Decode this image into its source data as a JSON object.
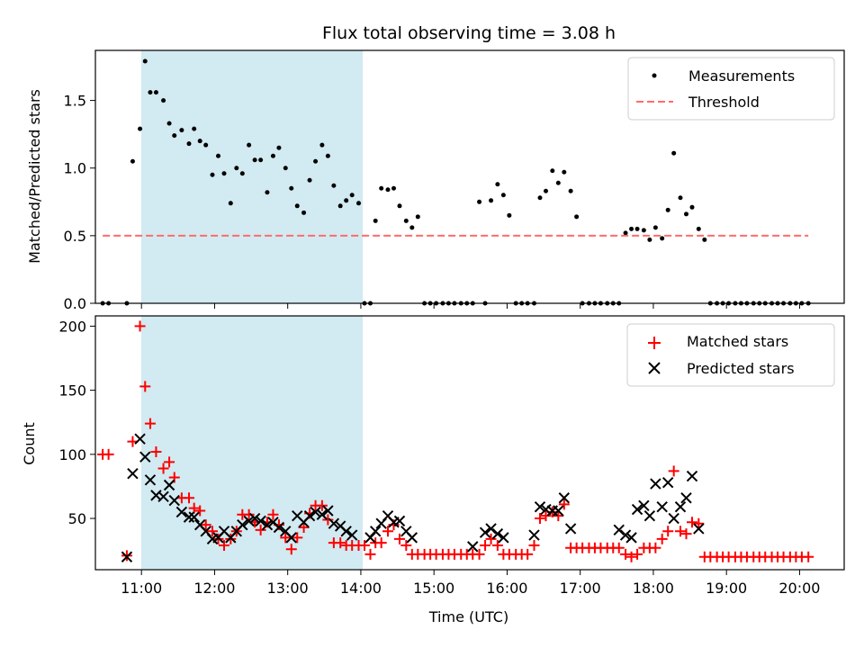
{
  "chart_data": [
    {
      "type": "scatter",
      "title": "Flux total observing time = 3.08 h",
      "ylabel": "Matched/Predicted stars",
      "xlabel": "",
      "xlim": [
        10.37,
        20.61
      ],
      "ylim": [
        0,
        1.87
      ],
      "x_ticks": [
        "11:00",
        "12:00",
        "13:00",
        "14:00",
        "15:00",
        "16:00",
        "17:00",
        "18:00",
        "19:00",
        "20:00"
      ],
      "y_ticks": [
        "0.0",
        "0.5",
        "1.0",
        "1.5"
      ],
      "shaded_span": [
        10.8,
        13.88
      ],
      "shaded_color": "#add8e6",
      "legend_position": "upper right",
      "series": [
        {
          "name": "Measurements",
          "marker": "dot",
          "color": "#000000",
          "x": [
            10.47,
            10.55,
            10.8,
            10.88,
            10.98,
            11.05,
            11.12,
            11.2,
            11.3,
            11.38,
            11.45,
            11.55,
            11.65,
            11.72,
            11.8,
            11.88,
            11.97,
            12.05,
            12.13,
            12.22,
            12.3,
            12.38,
            12.47,
            12.55,
            12.63,
            12.72,
            12.8,
            12.88,
            12.97,
            13.05,
            13.13,
            13.22,
            13.3,
            13.38,
            13.47,
            13.55,
            13.63,
            13.72,
            13.8,
            13.88,
            13.97,
            14.05,
            14.13,
            14.2,
            14.28,
            14.37,
            14.45,
            14.53,
            14.62,
            14.7,
            14.78,
            14.87,
            14.95,
            15.03,
            15.12,
            15.2,
            15.28,
            15.37,
            15.45,
            15.53,
            15.62,
            15.7,
            15.78,
            15.87,
            15.95,
            16.03,
            16.12,
            16.2,
            16.28,
            16.37,
            16.45,
            16.53,
            16.62,
            16.7,
            16.78,
            16.87,
            16.95,
            17.03,
            17.12,
            17.2,
            17.28,
            17.37,
            17.45,
            17.53,
            17.62,
            17.7,
            17.78,
            17.87,
            17.95,
            18.03,
            18.12,
            18.2,
            18.28,
            18.37,
            18.45,
            18.53,
            18.62,
            18.7,
            18.78,
            18.87,
            18.95,
            19.03,
            19.12,
            19.2,
            19.28,
            19.37,
            19.45,
            19.53,
            19.62,
            19.7,
            19.78,
            19.87,
            19.95,
            20.03,
            20.12
          ],
          "y": [
            0,
            0,
            0,
            1.05,
            1.29,
            1.79,
            1.56,
            1.56,
            1.5,
            1.33,
            1.24,
            1.28,
            1.18,
            1.29,
            1.2,
            1.17,
            0.95,
            1.09,
            0.96,
            0.74,
            1.0,
            0.96,
            1.17,
            1.06,
            1.06,
            0.82,
            1.09,
            1.15,
            1.0,
            0.85,
            0.72,
            0.67,
            0.91,
            1.05,
            1.17,
            1.09,
            0.87,
            0.72,
            0.76,
            0.8,
            0.74,
            0,
            0,
            0.61,
            0.85,
            0.84,
            0.85,
            0.72,
            0.61,
            0.56,
            0.64,
            0,
            0,
            0,
            0,
            0,
            0,
            0,
            0,
            0,
            0.75,
            0,
            0.76,
            0.88,
            0.8,
            0.65,
            0,
            0,
            0,
            0,
            0.78,
            0.83,
            0.98,
            0.89,
            0.97,
            0.83,
            0.64,
            0,
            0,
            0,
            0,
            0,
            0,
            0,
            0.52,
            0.55,
            0.55,
            0.54,
            0.47,
            0.56,
            0.48,
            0.69,
            1.11,
            0.78,
            0.66,
            0.71,
            0.55,
            0.47,
            0,
            0,
            0,
            0,
            0,
            0,
            0,
            0,
            0,
            0,
            0,
            0,
            0,
            0,
            0,
            0,
            0
          ]
        },
        {
          "name": "Threshold",
          "marker": "dashed-line",
          "color": "#ff6b6b",
          "x": [
            10.47,
            20.12
          ],
          "y": [
            0.5,
            0.5
          ]
        }
      ]
    },
    {
      "type": "scatter",
      "title": "",
      "ylabel": "Count",
      "xlabel": "Time (UTC)",
      "xlim": [
        10.37,
        20.61
      ],
      "ylim": [
        10,
        208
      ],
      "x_ticks": [
        "11:00",
        "12:00",
        "13:00",
        "14:00",
        "15:00",
        "16:00",
        "17:00",
        "18:00",
        "19:00",
        "20:00"
      ],
      "y_ticks": [
        "50",
        "100",
        "150",
        "200"
      ],
      "shaded_span": [
        10.8,
        13.88
      ],
      "shaded_color": "#add8e6",
      "legend_position": "upper right",
      "series": [
        {
          "name": "Matched stars",
          "marker": "plus",
          "color": "#ff0000",
          "x": [
            10.47,
            10.55,
            10.8,
            10.88,
            10.98,
            11.05,
            11.12,
            11.2,
            11.3,
            11.38,
            11.45,
            11.55,
            11.65,
            11.72,
            11.8,
            11.88,
            11.97,
            12.05,
            12.13,
            12.22,
            12.3,
            12.38,
            12.47,
            12.55,
            12.63,
            12.72,
            12.8,
            12.88,
            12.97,
            13.05,
            13.13,
            13.22,
            13.3,
            13.38,
            13.47,
            13.55,
            13.63,
            13.72,
            13.8,
            13.88,
            13.97,
            14.05,
            14.13,
            14.2,
            14.28,
            14.37,
            14.45,
            14.53,
            14.62,
            14.7,
            14.78,
            14.87,
            14.95,
            15.03,
            15.12,
            15.2,
            15.28,
            15.37,
            15.45,
            15.53,
            15.62,
            15.7,
            15.78,
            15.87,
            15.95,
            16.03,
            16.12,
            16.2,
            16.28,
            16.37,
            16.45,
            16.53,
            16.62,
            16.7,
            16.78,
            16.87,
            16.95,
            17.03,
            17.12,
            17.2,
            17.28,
            17.37,
            17.45,
            17.53,
            17.62,
            17.7,
            17.78,
            17.87,
            17.95,
            18.03,
            18.12,
            18.2,
            18.28,
            18.37,
            18.45,
            18.53,
            18.62,
            18.7,
            18.78,
            18.87,
            18.95,
            19.03,
            19.12,
            19.2,
            19.28,
            19.37,
            19.45,
            19.53,
            19.62,
            19.7,
            19.78,
            19.87,
            19.95,
            20.03,
            20.12
          ],
          "y": [
            100,
            100,
            21,
            110,
            200,
            153,
            124,
            102,
            89,
            94,
            82,
            66,
            66,
            58,
            56,
            45,
            40,
            34,
            29,
            34,
            40,
            53,
            53,
            47,
            41,
            47,
            53,
            45,
            35,
            26,
            35,
            43,
            54,
            60,
            60,
            49,
            31,
            31,
            29,
            29,
            29,
            29,
            22,
            31,
            31,
            40,
            45,
            34,
            29,
            22,
            22,
            22,
            22,
            22,
            22,
            22,
            22,
            22,
            22,
            22,
            22,
            29,
            34,
            29,
            22,
            22,
            22,
            22,
            22,
            29,
            50,
            52,
            55,
            52,
            61,
            27,
            27,
            27,
            27,
            27,
            27,
            27,
            27,
            27,
            22,
            20,
            22,
            27,
            27,
            27,
            34,
            40,
            87,
            40,
            38,
            47,
            46,
            20,
            20,
            20,
            20,
            20,
            20,
            20,
            20,
            20,
            20,
            20,
            20,
            20,
            20,
            20,
            20,
            20,
            20
          ]
        },
        {
          "name": "Predicted stars",
          "marker": "x",
          "color": "#000000",
          "x": [
            10.8,
            10.88,
            10.98,
            11.05,
            11.12,
            11.2,
            11.3,
            11.38,
            11.45,
            11.55,
            11.65,
            11.72,
            11.8,
            11.88,
            11.97,
            12.05,
            12.13,
            12.22,
            12.3,
            12.38,
            12.47,
            12.55,
            12.63,
            12.72,
            12.8,
            12.88,
            12.97,
            13.05,
            13.13,
            13.22,
            13.3,
            13.38,
            13.47,
            13.55,
            13.63,
            13.72,
            13.8,
            13.88,
            14.13,
            14.2,
            14.28,
            14.37,
            14.45,
            14.53,
            14.62,
            14.7,
            15.53,
            15.7,
            15.78,
            15.87,
            15.95,
            16.37,
            16.45,
            16.53,
            16.62,
            16.7,
            16.78,
            16.87,
            17.53,
            17.62,
            17.7,
            17.78,
            17.87,
            17.95,
            18.03,
            18.12,
            18.2,
            18.28,
            18.37,
            18.45,
            18.53,
            18.62
          ],
          "y": [
            20,
            85,
            112,
            98,
            80,
            68,
            67,
            76,
            64,
            55,
            51,
            51,
            45,
            40,
            34,
            35,
            40,
            35,
            40,
            45,
            48,
            50,
            48,
            45,
            47,
            43,
            40,
            35,
            52,
            47,
            52,
            55,
            53,
            56,
            46,
            44,
            40,
            37,
            35,
            40,
            46,
            52,
            47,
            48,
            40,
            35,
            28,
            39,
            42,
            38,
            35,
            37,
            59,
            57,
            56,
            56,
            66,
            42,
            41,
            37,
            35,
            57,
            60,
            52,
            77,
            59,
            78,
            50,
            59,
            66,
            83,
            42
          ]
        }
      ]
    }
  ]
}
